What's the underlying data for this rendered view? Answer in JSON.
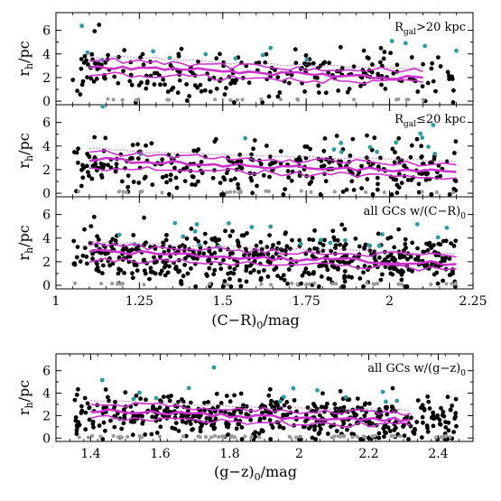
{
  "chart_data": [
    {
      "type": "scatter",
      "panel": "top",
      "annotation_main": "R",
      "annotation_sub": "gal",
      "annotation_rest": ">20 kpc",
      "ylabel": "r",
      "ylabel_sub": "h",
      "ylabel_rest": "/pc",
      "xlim": [
        1.0,
        2.25
      ],
      "ylim": [
        -0.3,
        7.5
      ],
      "y_ticks": [
        "0",
        "2",
        "4",
        "6"
      ],
      "trend_upper": [
        [
          1.1,
          3.5
        ],
        [
          1.3,
          3.4
        ],
        [
          1.5,
          3.0
        ],
        [
          1.7,
          2.8
        ],
        [
          1.9,
          2.7
        ],
        [
          2.1,
          2.5
        ]
      ],
      "trend_mid": [
        [
          1.1,
          2.9
        ],
        [
          1.3,
          2.8
        ],
        [
          1.5,
          2.5
        ],
        [
          1.7,
          2.3
        ],
        [
          1.9,
          2.1
        ],
        [
          2.1,
          2.0
        ]
      ],
      "trend_lower": [
        [
          1.1,
          2.3
        ],
        [
          1.3,
          2.2
        ],
        [
          1.5,
          2.0
        ],
        [
          1.7,
          1.8
        ],
        [
          1.9,
          1.7
        ],
        [
          2.1,
          1.6
        ]
      ],
      "seed": 11,
      "n_black": 230,
      "n_cyan": 14,
      "n_gray": 22,
      "center": 2.6,
      "spread": 1.1
    },
    {
      "type": "scatter",
      "panel": "middle",
      "annotation_main": "R",
      "annotation_sub": "gal",
      "annotation_rest": "≤20 kpc",
      "ylabel": "r",
      "ylabel_sub": "h",
      "ylabel_rest": "/pc",
      "xlim": [
        1.0,
        2.25
      ],
      "ylim": [
        -0.3,
        7.5
      ],
      "y_ticks": [
        "0",
        "2",
        "4",
        "6"
      ],
      "trend_upper": [
        [
          1.1,
          3.6
        ],
        [
          1.3,
          3.2
        ],
        [
          1.5,
          3.0
        ],
        [
          1.7,
          2.8
        ],
        [
          1.9,
          2.7
        ],
        [
          2.2,
          2.4
        ]
      ],
      "trend_mid": [
        [
          1.1,
          2.9
        ],
        [
          1.3,
          2.6
        ],
        [
          1.5,
          2.4
        ],
        [
          1.7,
          2.2
        ],
        [
          1.9,
          2.1
        ],
        [
          2.2,
          1.8
        ]
      ],
      "trend_lower": [
        [
          1.1,
          2.2
        ],
        [
          1.3,
          2.0
        ],
        [
          1.5,
          1.9
        ],
        [
          1.7,
          1.7
        ],
        [
          1.9,
          1.5
        ],
        [
          2.2,
          1.3
        ]
      ],
      "seed": 23,
      "n_black": 300,
      "n_cyan": 14,
      "n_gray": 24,
      "center": 2.5,
      "spread": 1.1
    },
    {
      "type": "scatter",
      "panel": "bottom-cr",
      "annotation_main": "all GCs w/(C−R)",
      "annotation_sub": "0",
      "annotation_rest": "",
      "ylabel": "r",
      "ylabel_sub": "h",
      "ylabel_rest": "/pc",
      "xlabel": "(C−R)",
      "xlabel_sub": "0",
      "xlabel_rest": "/mag",
      "xlim": [
        1.0,
        2.25
      ],
      "ylim": [
        -0.3,
        7.5
      ],
      "y_ticks": [
        "0",
        "2",
        "4",
        "6"
      ],
      "x_ticks": [
        {
          "value": 1.0,
          "label": "1"
        },
        {
          "value": 1.25,
          "label": "1.25"
        },
        {
          "value": 1.5,
          "label": "1.5"
        },
        {
          "value": 1.75,
          "label": "1.75"
        },
        {
          "value": 2.0,
          "label": "2"
        },
        {
          "value": 2.25,
          "label": "2.25"
        }
      ],
      "trend_upper": [
        [
          1.1,
          3.5
        ],
        [
          1.3,
          3.2
        ],
        [
          1.5,
          3.0
        ],
        [
          1.7,
          2.8
        ],
        [
          1.9,
          2.7
        ],
        [
          2.2,
          2.4
        ]
      ],
      "trend_mid": [
        [
          1.1,
          2.9
        ],
        [
          1.3,
          2.7
        ],
        [
          1.5,
          2.4
        ],
        [
          1.7,
          2.2
        ],
        [
          1.9,
          2.1
        ],
        [
          2.2,
          1.8
        ]
      ],
      "trend_lower": [
        [
          1.1,
          2.2
        ],
        [
          1.3,
          2.0
        ],
        [
          1.5,
          1.9
        ],
        [
          1.7,
          1.8
        ],
        [
          1.9,
          1.6
        ],
        [
          2.2,
          1.4
        ]
      ],
      "seed": 37,
      "n_black": 520,
      "n_cyan": 22,
      "n_gray": 30,
      "center": 2.5,
      "spread": 1.1
    },
    {
      "type": "scatter",
      "panel": "gz",
      "annotation_main": "all GCs w/(g−z)",
      "annotation_sub": "0",
      "annotation_rest": "",
      "ylabel": "r",
      "ylabel_sub": "h",
      "ylabel_rest": "/pc",
      "xlabel": "(g−z)",
      "xlabel_sub": "0",
      "xlabel_rest": "/mag",
      "xlim": [
        1.3,
        2.5
      ],
      "ylim": [
        -0.3,
        7.5
      ],
      "y_ticks": [
        "0",
        "2",
        "4",
        "6"
      ],
      "x_ticks": [
        {
          "value": 1.4,
          "label": "1.4"
        },
        {
          "value": 1.6,
          "label": "1.6"
        },
        {
          "value": 1.8,
          "label": "1.8"
        },
        {
          "value": 2.0,
          "label": "2"
        },
        {
          "value": 2.2,
          "label": "2.2"
        },
        {
          "value": 2.4,
          "label": "2.4"
        }
      ],
      "trend_upper": [
        [
          1.4,
          3.1
        ],
        [
          1.6,
          2.9
        ],
        [
          1.8,
          2.6
        ],
        [
          2.0,
          2.4
        ],
        [
          2.2,
          2.3
        ],
        [
          2.32,
          2.2
        ]
      ],
      "trend_mid": [
        [
          1.4,
          2.5
        ],
        [
          1.6,
          2.3
        ],
        [
          1.8,
          2.0
        ],
        [
          2.0,
          1.8
        ],
        [
          2.2,
          1.7
        ],
        [
          2.32,
          1.6
        ]
      ],
      "trend_lower": [
        [
          1.4,
          1.9
        ],
        [
          1.6,
          1.7
        ],
        [
          1.8,
          1.5
        ],
        [
          2.0,
          1.3
        ],
        [
          2.2,
          1.2
        ],
        [
          2.32,
          1.1
        ]
      ],
      "seed": 53,
      "n_black": 480,
      "n_cyan": 14,
      "n_gray": 60,
      "center": 2.2,
      "spread": 1.0
    }
  ],
  "colors": {
    "points": "#000000",
    "cyan_points": "#2a9d9d",
    "gray_points": "#9a9a9a",
    "trend": "#cc33cc",
    "trend_dotted": "#c060c0"
  }
}
